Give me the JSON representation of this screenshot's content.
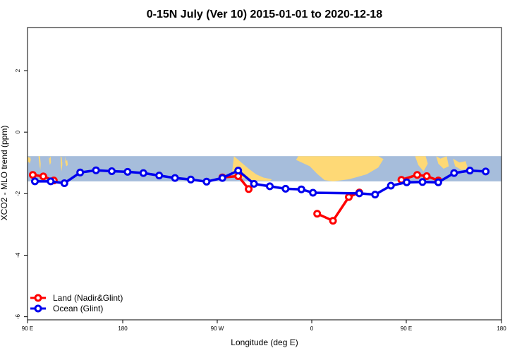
{
  "chart_data": {
    "type": "line",
    "title": "0-15N July (Ver 10)   2015-01-01 to 2020-12-18",
    "xlabel": "Longitude (deg E)",
    "ylabel": "XCO2 - MLO trend (ppm)",
    "xlim": [
      90,
      450
    ],
    "ylim": [
      -6.1,
      3.4
    ],
    "x_ticks": [
      {
        "value": 90,
        "label": "90 E"
      },
      {
        "value": 180,
        "label": "180"
      },
      {
        "value": 270,
        "label": "90 W"
      },
      {
        "value": 360,
        "label": "0"
      },
      {
        "value": 450,
        "label": "90 E"
      },
      {
        "value": 540,
        "label": "180"
      }
    ],
    "y_ticks": [
      {
        "value": 2,
        "label": "2"
      },
      {
        "value": 0,
        "label": "0"
      },
      {
        "value": -2,
        "label": "-2"
      },
      {
        "value": -4,
        "label": "-4"
      },
      {
        "value": -6,
        "label": "-6"
      }
    ],
    "grid": false,
    "legend_position": "bottom-left",
    "map_band": {
      "y_top": -0.78,
      "y_bottom": -1.6,
      "ocean_color": "#a6bddb",
      "land_color": "#fed976"
    },
    "series": [
      {
        "name": "Land (Nadir&Glint)",
        "color": "#ff0000",
        "segments": [
          {
            "x": [
              95,
              105,
              115
            ],
            "y": [
              -1.39,
              -1.44,
              -1.57
            ]
          },
          {
            "x": [
              275,
              290,
              300
            ],
            "y": [
              -1.47,
              -1.43,
              -1.85
            ]
          },
          {
            "x": [
              365,
              380,
              395,
              405
            ],
            "y": [
              -2.65,
              -2.88,
              -2.11,
              -1.96
            ]
          },
          {
            "x": [
              445,
              460,
              469,
              480
            ],
            "y": [
              -1.55,
              -1.39,
              -1.43,
              -1.57
            ]
          }
        ]
      },
      {
        "name": "Ocean (Glint)",
        "color": "#0000ee",
        "segments": [
          {
            "x": [
              97,
              112,
              125,
              140,
              155,
              170,
              185,
              200,
              215,
              230,
              245,
              260,
              275,
              290,
              305,
              320,
              335,
              350,
              361,
              405,
              420,
              435,
              450,
              465,
              480,
              495,
              510,
              525
            ],
            "y": [
              -1.6,
              -1.6,
              -1.66,
              -1.31,
              -1.24,
              -1.27,
              -1.29,
              -1.33,
              -1.41,
              -1.49,
              -1.54,
              -1.61,
              -1.49,
              -1.25,
              -1.68,
              -1.76,
              -1.84,
              -1.86,
              -1.97,
              -1.99,
              -2.03,
              -1.74,
              -1.63,
              -1.62,
              -1.63,
              -1.33,
              -1.25,
              -1.28
            ]
          }
        ]
      }
    ]
  }
}
